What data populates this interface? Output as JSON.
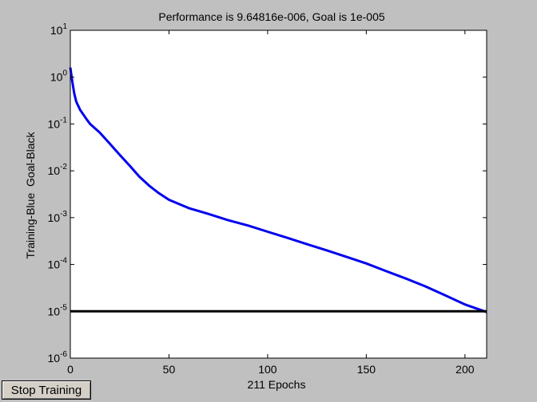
{
  "window": {
    "stop_label": "Stop Training"
  },
  "colors": {
    "figure_background": "#c0c0c0",
    "plot_background": "#ffffff",
    "training": "#0000ee",
    "goal": "#000000"
  },
  "chart_data": {
    "type": "line",
    "title": "Performance is 9.64816e-006, Goal is 1e-005",
    "xlabel": "211 Epochs",
    "ylabel": "Training-Blue  Goal-Black",
    "xlim": [
      0,
      211
    ],
    "ylim": [
      1e-06,
      10
    ],
    "yscale": "log",
    "grid": false,
    "x_ticks": [
      0,
      50,
      100,
      150,
      200
    ],
    "y_ticks": [
      {
        "value": 1e-06,
        "base": "10",
        "exp": "-6"
      },
      {
        "value": 1e-05,
        "base": "10",
        "exp": "-5"
      },
      {
        "value": 0.0001,
        "base": "10",
        "exp": "-4"
      },
      {
        "value": 0.001,
        "base": "10",
        "exp": "-3"
      },
      {
        "value": 0.01,
        "base": "10",
        "exp": "-2"
      },
      {
        "value": 0.1,
        "base": "10",
        "exp": "-1"
      },
      {
        "value": 1,
        "base": "10",
        "exp": "0"
      },
      {
        "value": 10,
        "base": "10",
        "exp": "1"
      }
    ],
    "series": [
      {
        "role": "training",
        "color": "#0000ee",
        "x": [
          0,
          1,
          2,
          3,
          5,
          8,
          10,
          15,
          20,
          25,
          30,
          35,
          40,
          45,
          50,
          60,
          70,
          80,
          90,
          100,
          110,
          120,
          130,
          140,
          150,
          160,
          170,
          180,
          190,
          200,
          205,
          211
        ],
        "y": [
          1.6,
          0.8,
          0.45,
          0.3,
          0.2,
          0.13,
          0.1,
          0.065,
          0.038,
          0.022,
          0.013,
          0.0075,
          0.0048,
          0.0033,
          0.0024,
          0.0016,
          0.0012,
          0.00088,
          0.00068,
          0.0005,
          0.00037,
          0.00027,
          0.0002,
          0.000145,
          0.000105,
          7.2e-05,
          5e-05,
          3.4e-05,
          2.2e-05,
          1.4e-05,
          1.18e-05,
          9.65e-06
        ]
      },
      {
        "role": "goal",
        "color": "#000000",
        "x": [
          0,
          211
        ],
        "y": [
          1e-05,
          1e-05
        ]
      }
    ]
  }
}
